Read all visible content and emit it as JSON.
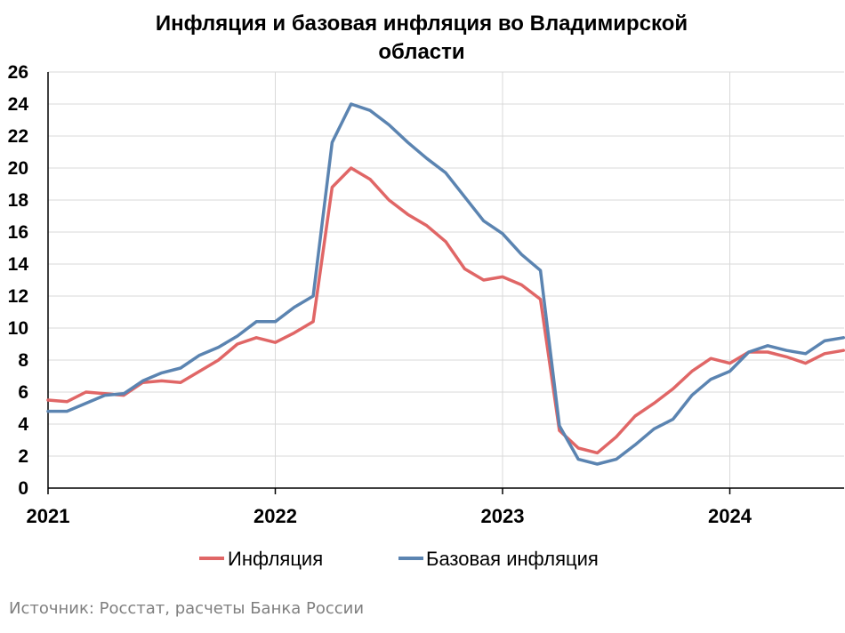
{
  "chart_data": {
    "type": "line",
    "title_lines": [
      "Инфляция и базовая инфляция во Владимирской",
      "области"
    ],
    "x_start": "2021-01",
    "x_ticks": [
      "2021",
      "2022",
      "2023",
      "2024"
    ],
    "ylim": [
      0,
      26
    ],
    "yticks": [
      0,
      2,
      4,
      6,
      8,
      10,
      12,
      14,
      16,
      18,
      20,
      22,
      24,
      26
    ],
    "grid": true,
    "legend": "bottom",
    "series": [
      {
        "name": "Инфляция",
        "color": "#e06666",
        "values": [
          5.5,
          5.4,
          6.0,
          5.9,
          5.8,
          6.6,
          6.7,
          6.6,
          7.3,
          8.0,
          9.0,
          9.4,
          9.1,
          9.7,
          10.4,
          18.8,
          20.0,
          19.3,
          18.0,
          17.1,
          16.4,
          15.4,
          13.7,
          13.0,
          13.2,
          12.7,
          11.8,
          3.6,
          2.5,
          2.2,
          3.2,
          4.5,
          5.3,
          6.2,
          7.3,
          8.1,
          7.8,
          8.5,
          8.5,
          8.2,
          7.8,
          8.4,
          8.6
        ]
      },
      {
        "name": "Базовая инфляция",
        "color": "#5b84b1",
        "values": [
          4.8,
          4.8,
          5.3,
          5.8,
          5.9,
          6.7,
          7.2,
          7.5,
          8.3,
          8.8,
          9.5,
          10.4,
          10.4,
          11.3,
          12.0,
          21.6,
          24.0,
          23.6,
          22.7,
          21.6,
          20.6,
          19.7,
          18.2,
          16.7,
          15.9,
          14.6,
          13.6,
          3.9,
          1.8,
          1.5,
          1.8,
          2.7,
          3.7,
          4.3,
          5.8,
          6.8,
          7.3,
          8.5,
          8.9,
          8.6,
          8.4,
          9.2,
          9.4
        ]
      }
    ]
  },
  "source_note": "Источник: Росстат, расчеты Банка России"
}
